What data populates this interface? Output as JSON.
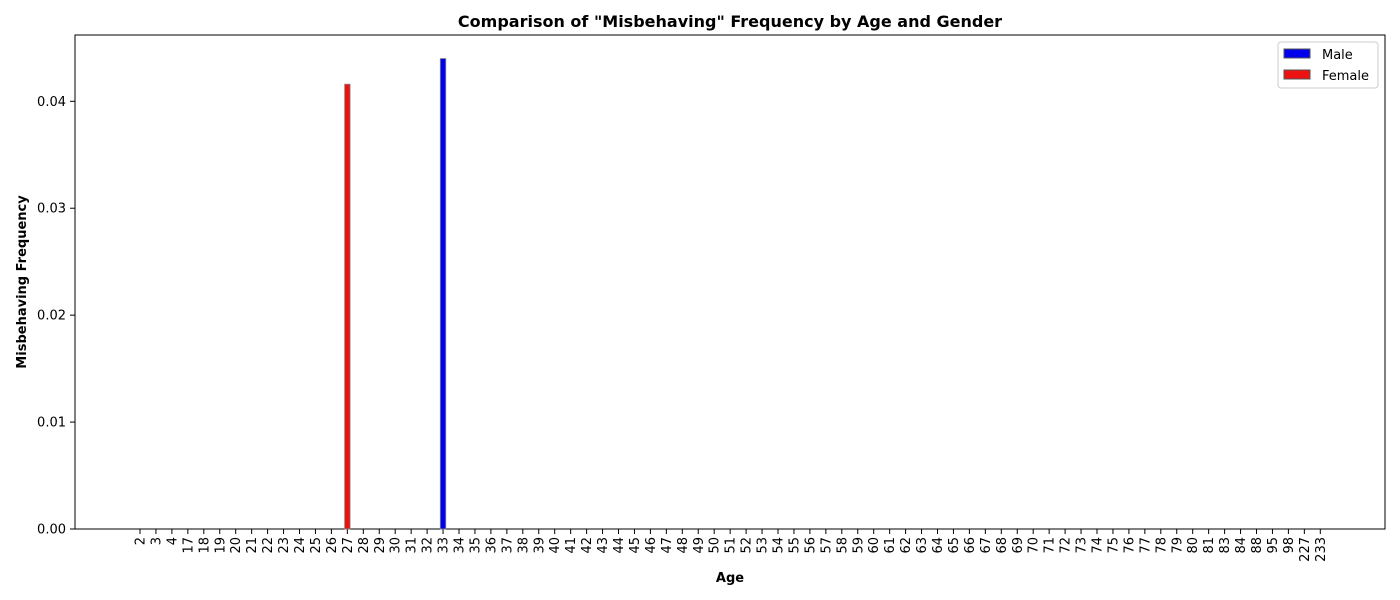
{
  "chart_data": {
    "type": "bar",
    "title": "Comparison of \"Misbehaving\" Frequency by Age and Gender",
    "xlabel": "Age",
    "ylabel": "Misbehaving Frequency",
    "ylim": [
      0,
      0.0462
    ],
    "yticks": [
      "0.00",
      "0.01",
      "0.02",
      "0.03",
      "0.04"
    ],
    "categories": [
      "2",
      "3",
      "4",
      "17",
      "18",
      "19",
      "20",
      "21",
      "22",
      "23",
      "24",
      "25",
      "26",
      "27",
      "28",
      "29",
      "30",
      "31",
      "32",
      "33",
      "34",
      "35",
      "36",
      "37",
      "38",
      "39",
      "40",
      "41",
      "42",
      "43",
      "44",
      "45",
      "46",
      "47",
      "48",
      "49",
      "50",
      "51",
      "52",
      "53",
      "54",
      "55",
      "56",
      "57",
      "58",
      "59",
      "60",
      "61",
      "62",
      "63",
      "64",
      "65",
      "66",
      "67",
      "68",
      "69",
      "70",
      "71",
      "72",
      "73",
      "74",
      "75",
      "76",
      "77",
      "78",
      "79",
      "80",
      "81",
      "83",
      "84",
      "88",
      "95",
      "98",
      "227",
      "233"
    ],
    "series": [
      {
        "name": "Male",
        "color": "#0000ee",
        "points": [
          {
            "x": "33",
            "value": 0.044
          }
        ]
      },
      {
        "name": "Female",
        "color": "#ee1111",
        "points": [
          {
            "x": "27",
            "value": 0.0416
          }
        ]
      }
    ],
    "legend_position": "top-right",
    "grid": false
  }
}
